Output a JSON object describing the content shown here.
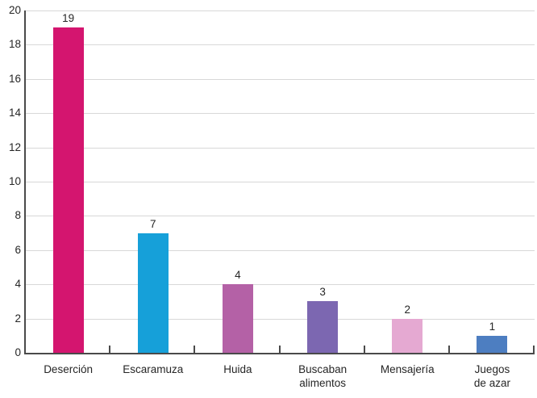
{
  "chart_data": {
    "type": "bar",
    "title": "",
    "xlabel": "",
    "ylabel": "",
    "categories": [
      "Deserción",
      "Escaramuza",
      "Huida",
      "Buscaban\nalimentos",
      "Mensajería",
      "Juegos\nde azar"
    ],
    "values": [
      19,
      7,
      4,
      3,
      2,
      1
    ],
    "bar_colors": [
      "#d4156f",
      "#16a0d9",
      "#b461a6",
      "#7c67b1",
      "#e5a9d2",
      "#4d7ec1"
    ],
    "ylim": [
      0,
      20
    ],
    "ytick_step": 2,
    "ytick_labels": [
      "0",
      "2",
      "4",
      "6",
      "8",
      "10",
      "12",
      "14",
      "16",
      "18",
      "20"
    ],
    "grid": true,
    "legend": "none"
  },
  "colors": {
    "grid": "#d8d8d8",
    "axis": "#4a4a4a",
    "text": "#262626",
    "background": "#ffffff"
  }
}
